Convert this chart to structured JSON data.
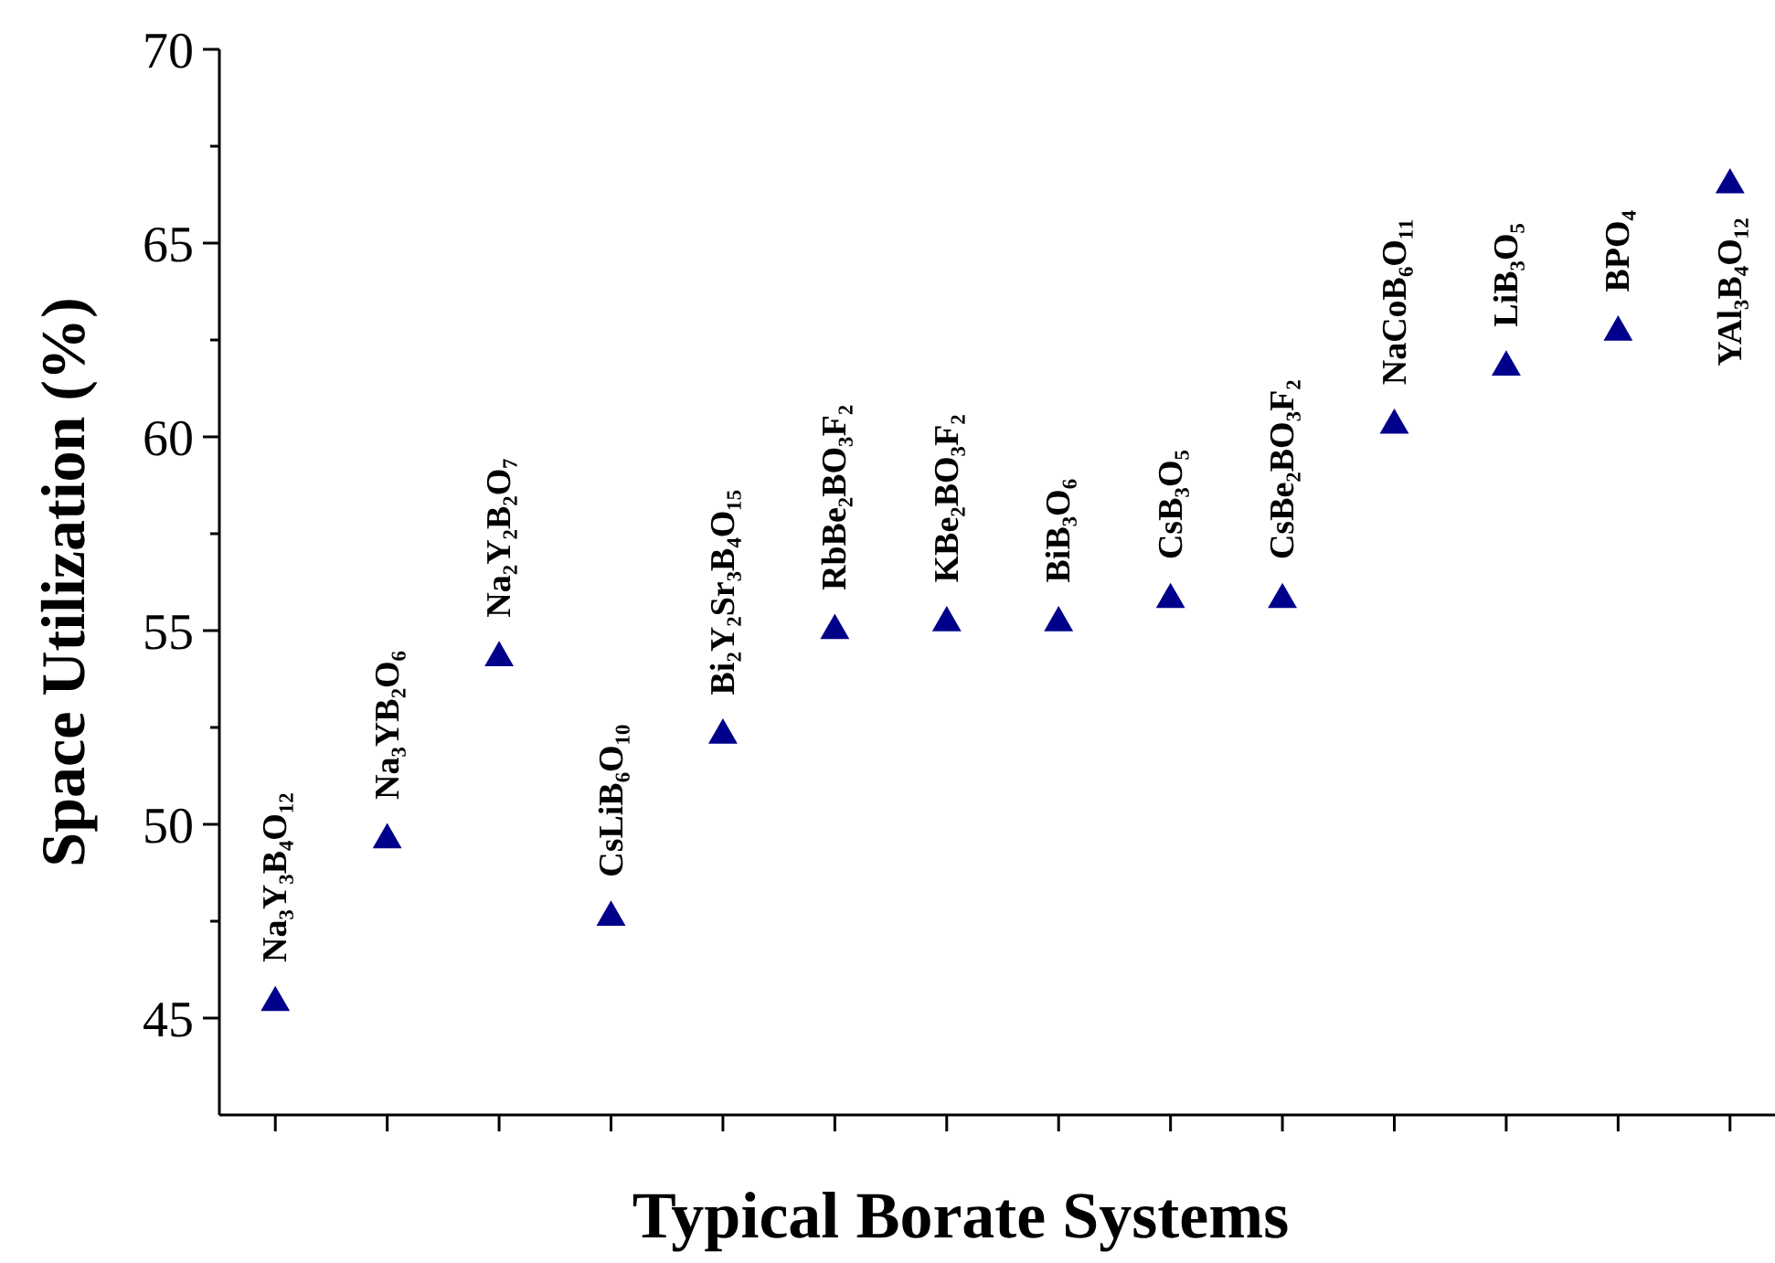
{
  "chart_data": {
    "type": "scatter",
    "xlabel": "Typical Borate Systems",
    "ylabel": "Space Utilization (%)",
    "categories": [
      "Na₃Y₃B₄O₁₂",
      "Na₃YB₂O₆",
      "Na₂Y₂B₂O₇",
      "CsLiB₆O₁₀",
      "Bi₂Y₂Sr₃B₄O₁₅",
      "RbBe₂BO₃F₂",
      "KBe₂BO₃F₂",
      "BiB₃O₆",
      "CsB₃O₅",
      "CsBe₂BO₃F₂",
      "NaCoB₆O₁₁",
      "LiB₃O₅",
      "BPO₄",
      "YAl₃B₄O₁₂"
    ],
    "series": [
      {
        "color": "#00008b",
        "values": [
          45.4,
          49.6,
          54.3,
          47.6,
          52.3,
          55.0,
          55.2,
          55.2,
          55.8,
          55.8,
          60.3,
          61.8,
          62.7,
          66.5
        ]
      }
    ],
    "ylim": [
      42.5,
      70
    ],
    "yticks": [
      45,
      {
        "value": 47.5,
        "label": null
      },
      50,
      {
        "value": 52.5,
        "label": null
      },
      55,
      {
        "value": 57.5,
        "label": null
      },
      60,
      {
        "value": 62.5,
        "label": null
      },
      65,
      {
        "value": 67.5,
        "label": null
      },
      70
    ],
    "marker": "triangle",
    "grid": false,
    "tick_labels": "y"
  }
}
